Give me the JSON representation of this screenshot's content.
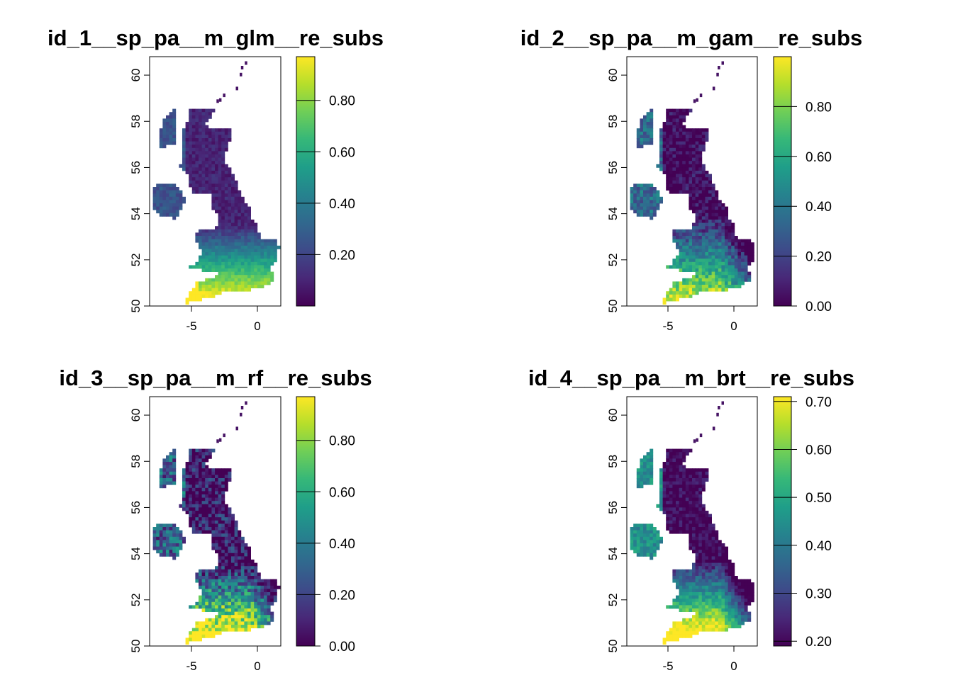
{
  "figure": {
    "colormap": "viridis",
    "colormap_stops": [
      "#440154",
      "#482878",
      "#3e4a89",
      "#31688e",
      "#26828e",
      "#1f9e89",
      "#35b779",
      "#6ece58",
      "#b5de2b",
      "#fde725"
    ],
    "panels": [
      {
        "title": "id_1__sp_pa__m_glm__re_subs",
        "x_ticks": [
          "-5",
          "0"
        ],
        "y_ticks": [
          "50",
          "52",
          "54",
          "56",
          "58",
          "60"
        ],
        "colorbar": {
          "ticks": [
            "0.20",
            "0.40",
            "0.60",
            "0.80"
          ],
          "range": [
            0.0,
            0.97
          ]
        },
        "pattern": "south-high"
      },
      {
        "title": "id_2__sp_pa__m_gam__re_subs",
        "x_ticks": [
          "-5",
          "0"
        ],
        "y_ticks": [
          "50",
          "52",
          "54",
          "56",
          "58",
          "60"
        ],
        "colorbar": {
          "ticks": [
            "0.00",
            "0.20",
            "0.40",
            "0.60",
            "0.80"
          ],
          "range": [
            0.0,
            1.0
          ]
        },
        "pattern": "midlands-high"
      },
      {
        "title": "id_3__sp_pa__m_rf__re_subs",
        "x_ticks": [
          "-5",
          "0"
        ],
        "y_ticks": [
          "50",
          "52",
          "54",
          "56",
          "58",
          "60"
        ],
        "colorbar": {
          "ticks": [
            "0.00",
            "0.20",
            "0.40",
            "0.60",
            "0.80"
          ],
          "range": [
            0.0,
            0.97
          ]
        },
        "pattern": "patchy-high"
      },
      {
        "title": "id_4__sp_pa__m_brt__re_subs",
        "x_ticks": [
          "-5",
          "0"
        ],
        "y_ticks": [
          "50",
          "52",
          "54",
          "56",
          "58",
          "60"
        ],
        "colorbar": {
          "ticks": [
            "0.20",
            "0.30",
            "0.40",
            "0.50",
            "0.60",
            "0.70"
          ],
          "range": [
            0.19,
            0.71
          ]
        },
        "pattern": "west-high"
      }
    ]
  }
}
